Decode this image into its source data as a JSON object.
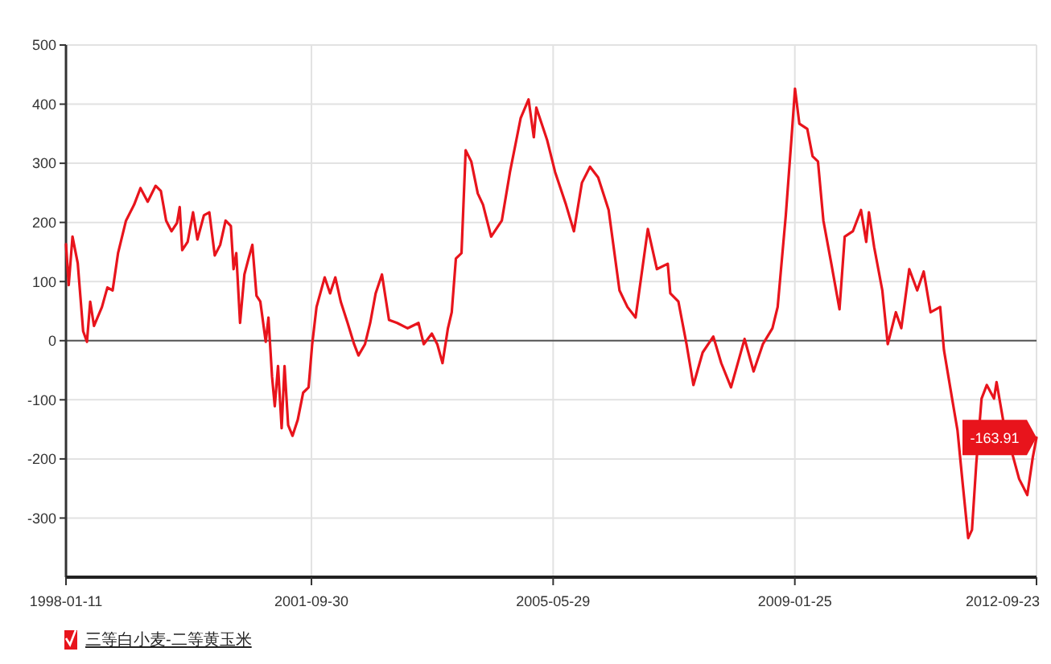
{
  "chart_data": {
    "type": "line",
    "x": [
      "1998-01-11",
      "1998-01-26",
      "1998-02-16",
      "1998-03-17",
      "1998-04-16",
      "1998-05-07",
      "1998-05-25",
      "1998-06-15",
      "1998-07-29",
      "1998-08-28",
      "1998-09-26",
      "1998-10-26",
      "1998-12-09",
      "1999-01-23",
      "1999-02-27",
      "1999-04-08",
      "1999-05-22",
      "1999-06-20",
      "1999-07-19",
      "1999-08-18",
      "1999-09-17",
      "1999-10-02",
      "1999-10-16",
      "1999-11-15",
      "1999-12-15",
      "2000-01-08",
      "2000-02-13",
      "2000-03-14",
      "2000-04-13",
      "2000-05-13",
      "2000-06-12",
      "2000-07-11",
      "2000-07-26",
      "2000-08-10",
      "2000-08-31",
      "2000-09-24",
      "2000-10-17",
      "2000-11-07",
      "2000-11-30",
      "2000-12-21",
      "2001-01-20",
      "2001-02-04",
      "2001-02-24",
      "2001-03-11",
      "2001-03-29",
      "2001-04-18",
      "2001-05-04",
      "2001-05-24",
      "2001-06-17",
      "2001-07-16",
      "2001-08-15",
      "2001-09-14",
      "2001-10-04",
      "2001-10-28",
      "2001-12-12",
      "2002-01-11",
      "2002-02-09",
      "2002-03-11",
      "2002-04-18",
      "2002-05-24",
      "2002-06-17",
      "2002-07-23",
      "2002-08-21",
      "2002-09-20",
      "2002-10-25",
      "2002-12-03",
      "2003-01-17",
      "2003-03-16",
      "2003-05-15",
      "2003-06-13",
      "2003-07-28",
      "2003-08-27",
      "2003-09-25",
      "2003-10-25",
      "2003-11-15",
      "2003-12-08",
      "2004-01-08",
      "2004-01-31",
      "2004-03-02",
      "2004-04-07",
      "2004-05-06",
      "2004-06-20",
      "2004-08-18",
      "2004-10-02",
      "2004-11-01",
      "2004-11-30",
      "2005-01-13",
      "2005-02-11",
      "2005-02-25",
      "2005-04-25",
      "2005-06-09",
      "2005-08-08",
      "2005-09-21",
      "2005-11-04",
      "2005-12-19",
      "2006-02-02",
      "2006-04-01",
      "2006-05-31",
      "2006-07-14",
      "2006-08-28",
      "2006-11-04",
      "2006-12-24",
      "2007-02-22",
      "2007-03-08",
      "2007-04-22",
      "2007-06-06",
      "2007-07-14",
      "2007-09-03",
      "2007-11-01",
      "2007-12-15",
      "2008-02-07",
      "2008-04-22",
      "2008-06-11",
      "2008-08-01",
      "2008-09-23",
      "2008-10-22",
      "2008-12-06",
      "2009-01-06",
      "2009-01-26",
      "2009-02-19",
      "2009-04-04",
      "2009-05-03",
      "2009-06-02",
      "2009-07-02",
      "2009-08-15",
      "2009-09-29",
      "2009-10-28",
      "2009-12-12",
      "2010-01-26",
      "2010-02-24",
      "2010-03-11",
      "2010-04-09",
      "2010-05-24",
      "2010-06-23",
      "2010-08-07",
      "2010-09-06",
      "2010-10-20",
      "2010-12-03",
      "2011-01-08",
      "2011-02-15",
      "2011-04-09",
      "2011-04-30",
      "2011-06-14",
      "2011-07-14",
      "2011-08-12",
      "2011-09-11",
      "2011-10-02",
      "2011-10-26",
      "2011-11-24",
      "2011-12-23",
      "2012-02-01",
      "2012-02-15",
      "2012-03-22",
      "2012-06-19",
      "2012-08-03",
      "2012-09-02",
      "2012-09-23"
    ],
    "series": [
      {
        "name": "三等白小麦-二等黄玉米",
        "color": "#e8141c",
        "values": [
          163,
          94,
          176,
          131,
          16,
          -2,
          66,
          25,
          57,
          90,
          85,
          148,
          203,
          230,
          258,
          235,
          262,
          253,
          203,
          185,
          199,
          226,
          153,
          167,
          217,
          171,
          212,
          217,
          144,
          162,
          203,
          194,
          121,
          148,
          30,
          112,
          139,
          162,
          76,
          66,
          -2,
          39,
          -61,
          -111,
          -43,
          -148,
          -43,
          -143,
          -161,
          -134,
          -88,
          -79,
          -6,
          57,
          107,
          80,
          107,
          66,
          30,
          -6,
          -25,
          -6,
          30,
          80,
          112,
          35,
          30,
          21,
          30,
          -6,
          12,
          -6,
          -38,
          21,
          48,
          139,
          148,
          322,
          303,
          249,
          230,
          176,
          203,
          285,
          331,
          376,
          408,
          344,
          394,
          340,
          285,
          230,
          185,
          267,
          294,
          276,
          221,
          85,
          57,
          39,
          189,
          121,
          130,
          80,
          66,
          -6,
          -75,
          -20,
          7,
          -38,
          -79,
          3,
          -52,
          -6,
          21,
          57,
          212,
          340,
          426,
          367,
          358,
          312,
          303,
          203,
          130,
          53,
          176,
          185,
          221,
          167,
          217,
          158,
          85,
          -6,
          48,
          21,
          121,
          85,
          117,
          48,
          57,
          -16,
          -98,
          -152,
          -243,
          -334,
          -320,
          -207,
          -98,
          -75,
          -98,
          -70,
          -134,
          -234,
          -261,
          -198,
          -163.91
        ]
      }
    ],
    "xlim": [
      "1998-01-11",
      "2012-09-23"
    ],
    "xticks": [
      "1998-01-11",
      "2001-09-30",
      "2005-05-29",
      "2009-01-25",
      "2012-09-23"
    ],
    "ylim": [
      -400,
      500
    ],
    "yticks": [
      -300,
      -200,
      -100,
      0,
      100,
      200,
      300,
      400,
      500
    ],
    "grid": true,
    "legend": "bottom left",
    "marker": "none",
    "line_style": "solid",
    "ref_lines": [
      {
        "axis": "y",
        "value": 0,
        "color": "#555555"
      }
    ],
    "annotations": [
      {
        "text": "-163.91",
        "x": "2012-09-23",
        "y": -163.91
      }
    ]
  }
}
